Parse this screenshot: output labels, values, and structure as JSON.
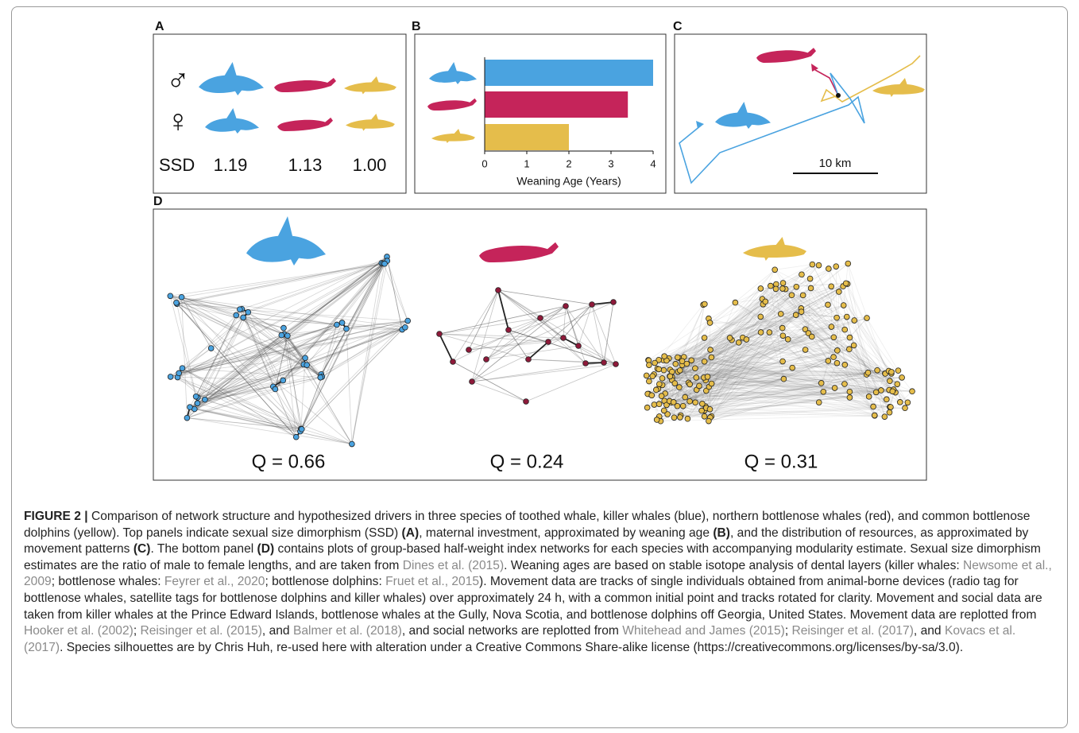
{
  "figure": {
    "panels": {
      "A": {
        "label": "A",
        "male": "♂",
        "female": "♀",
        "ssd_label": "SSD",
        "ssd": [
          "1.19",
          "1.13",
          "1.00"
        ]
      },
      "B": {
        "label": "B",
        "xlabel": "Weaning Age (Years)",
        "values": [
          4,
          3.4,
          2
        ],
        "colors": [
          "#4aa3e0",
          "#c5245a",
          "#e5bd4b"
        ],
        "xlim": [
          0,
          4
        ],
        "xticks": [
          0,
          1,
          2,
          3,
          4
        ]
      },
      "C": {
        "label": "C",
        "scale": "10 km"
      },
      "D": {
        "label": "D",
        "q": [
          "Q = 0.66",
          "Q = 0.24",
          "Q = 0.31"
        ]
      }
    },
    "caption": {
      "parts": [
        "FIGURE 2 |",
        " Comparison of network structure and hypothesized drivers in three species of toothed whale, killer whales (blue), northern bottlenose whales (red), and common bottlenose dolphins (yellow). Top panels indicate sexual size dimorphism (SSD) ",
        "(A)",
        ", maternal investment, approximated by weaning age ",
        "(B)",
        ", and the distribution of resources, as approximated by movement patterns ",
        "(C)",
        ". The bottom panel ",
        "(D)",
        " contains plots of group-based half-weight index networks for each species with accompanying modularity estimate. Sexual size dimorphism estimates are the ratio of male to female lengths, and are taken from ",
        "Dines et al. (2015)",
        ". Weaning ages are based on stable isotope analysis of dental layers (killer whales: ",
        "Newsome et al., 2009",
        "; bottlenose whales: ",
        "Feyrer et al., 2020",
        "; bottlenose dolphins: ",
        "Fruet et al., 2015",
        "). Movement data are tracks of single individuals obtained from animal-borne devices (radio tag for bottlenose whales, satellite tags for bottlenose dolphins and killer whales) over approximately 24 h, with a common initial point and tracks rotated for clarity. Movement and social data are taken from killer whales at the Prince Edward Islands, bottlenose whales at the Gully, Nova Scotia, and bottlenose dolphins off Georgia, United States. Movement data are replotted from ",
        "Hooker et al. (2002)",
        "; ",
        "Reisinger et al. (2015)",
        ", and ",
        "Balmer et al. (2018)",
        ", and social networks are replotted from ",
        "Whitehead and James (2015)",
        "; ",
        "Reisinger et al. (2017)",
        ", and ",
        "Kovacs et al. (2017)",
        ". Species silhouettes are by Chris Huh, re-used here with alteration under a Creative Commons Share-alike license (https://creativecommons.org/licenses/by-sa/3.0)."
      ]
    }
  }
}
